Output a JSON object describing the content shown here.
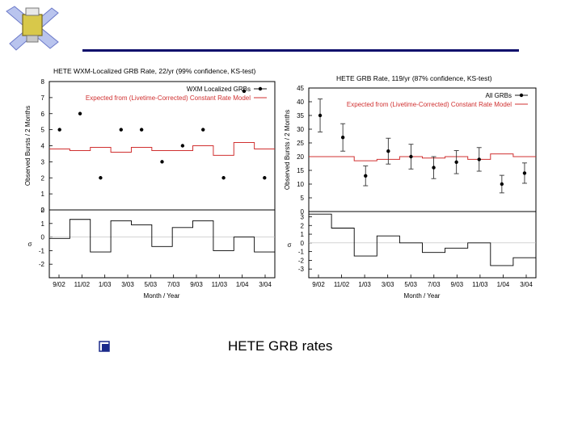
{
  "caption": "HETE GRB rates",
  "colors": {
    "rule": "#0b0b6b",
    "model": "#d03030",
    "points": "#000000",
    "sigma": "#000000"
  },
  "chart_data": [
    {
      "type": "scatter",
      "title": "HETE WXM-Localized GRB Rate, 22/yr (99% confidence, KS-test)",
      "xlabel": "Month / Year",
      "ylabel": "Observed Bursts / 2 Months",
      "sigma_label": "σ",
      "ylim": [
        0,
        8
      ],
      "yticks": [
        0,
        1,
        2,
        3,
        4,
        5,
        6,
        7,
        8
      ],
      "sigma_ylim": [
        -3,
        2
      ],
      "sigma_yticks": [
        -2,
        -1,
        0,
        1,
        2
      ],
      "x_tick_labels": [
        "9/02",
        "11/02",
        "1/03",
        "3/03",
        "5/03",
        "7/03",
        "9/03",
        "11/03",
        "1/04",
        "3/04"
      ],
      "legend": {
        "position": "top-right",
        "entries": [
          "WXM Localized GRBs",
          "Expected from (Livetime-Corrected) Constant Rate Model"
        ]
      },
      "series": [
        {
          "name": "WXM Localized GRBs",
          "values": [
            5,
            6,
            2,
            5,
            5,
            3,
            4,
            5,
            2,
            7.4,
            2
          ],
          "errors": []
        },
        {
          "name": "Expected from (Livetime-Corrected) Constant Rate Model",
          "values": [
            3.8,
            3.7,
            3.9,
            3.6,
            3.9,
            3.7,
            3.7,
            4.0,
            3.4,
            4.2,
            3.8
          ]
        }
      ],
      "sigma": [
        -0.1,
        1.3,
        -1.1,
        1.2,
        0.9,
        -0.7,
        0.7,
        1.2,
        -1.0,
        0,
        -1.1
      ]
    },
    {
      "type": "scatter",
      "title": "HETE GRB Rate, 119/yr (87% confidence, KS-test)",
      "xlabel": "Month / Year",
      "ylabel": "Observed Bursts / 2 Months",
      "sigma_label": "σ",
      "ylim": [
        0,
        45
      ],
      "yticks": [
        0,
        5,
        10,
        15,
        20,
        25,
        30,
        35,
        40,
        45
      ],
      "sigma_ylim": [
        -4,
        3.6
      ],
      "sigma_yticks": [
        -3,
        -2,
        -1,
        0,
        1,
        2,
        3
      ],
      "x_tick_labels": [
        "9/02",
        "11/02",
        "1/03",
        "3/03",
        "5/03",
        "7/03",
        "9/03",
        "11/03",
        "1/04",
        "3/04"
      ],
      "legend": {
        "position": "top-right",
        "entries": [
          "All GRBs",
          "Expected from (Livetime-Corrected) Constant Rate Model"
        ]
      },
      "series": [
        {
          "name": "All GRBs",
          "values": [
            35,
            27,
            13,
            22,
            20,
            16,
            18,
            19,
            10,
            14
          ],
          "errors": [
            6,
            5,
            3.6,
            4.7,
            4.5,
            4,
            4.2,
            4.3,
            3.2,
            3.7
          ]
        },
        {
          "name": "Expected from (Livetime-Corrected) Constant Rate Model",
          "values": [
            20,
            20,
            18.5,
            19,
            20,
            19.5,
            20,
            19,
            21,
            20
          ]
        }
      ],
      "sigma": [
        3.3,
        1.7,
        -1.5,
        0.8,
        0,
        -1.1,
        -0.6,
        0,
        -2.6,
        -1.7
      ]
    }
  ]
}
